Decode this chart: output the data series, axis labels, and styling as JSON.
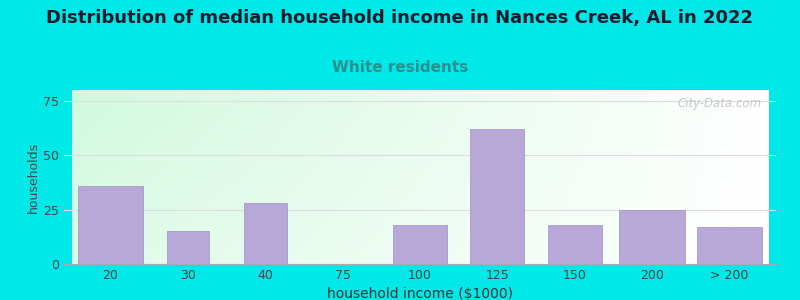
{
  "title": "Distribution of median household income in Nances Creek, AL in 2022",
  "subtitle": "White residents",
  "xlabel": "household income ($1000)",
  "ylabel": "households",
  "title_fontsize": 13,
  "subtitle_fontsize": 11,
  "title_color": "#1a1a2e",
  "subtitle_color": "#2a9090",
  "bar_color": "#b8a8d8",
  "bar_edge_color": "#a090c0",
  "background_outer": "#00e8e8",
  "background_inner_topleft": "#d0ecc0",
  "background_inner_right": "#f0f0f0",
  "ylim": [
    0,
    80
  ],
  "yticks": [
    0,
    25,
    50,
    75
  ],
  "categories": [
    "20",
    "30",
    "40",
    "75",
    "100",
    "125",
    "150",
    "200",
    "> 200"
  ],
  "values": [
    36,
    15,
    28,
    0,
    18,
    62,
    18,
    25,
    17
  ],
  "watermark": "City-Data.com",
  "grid_color": "#dddddd"
}
